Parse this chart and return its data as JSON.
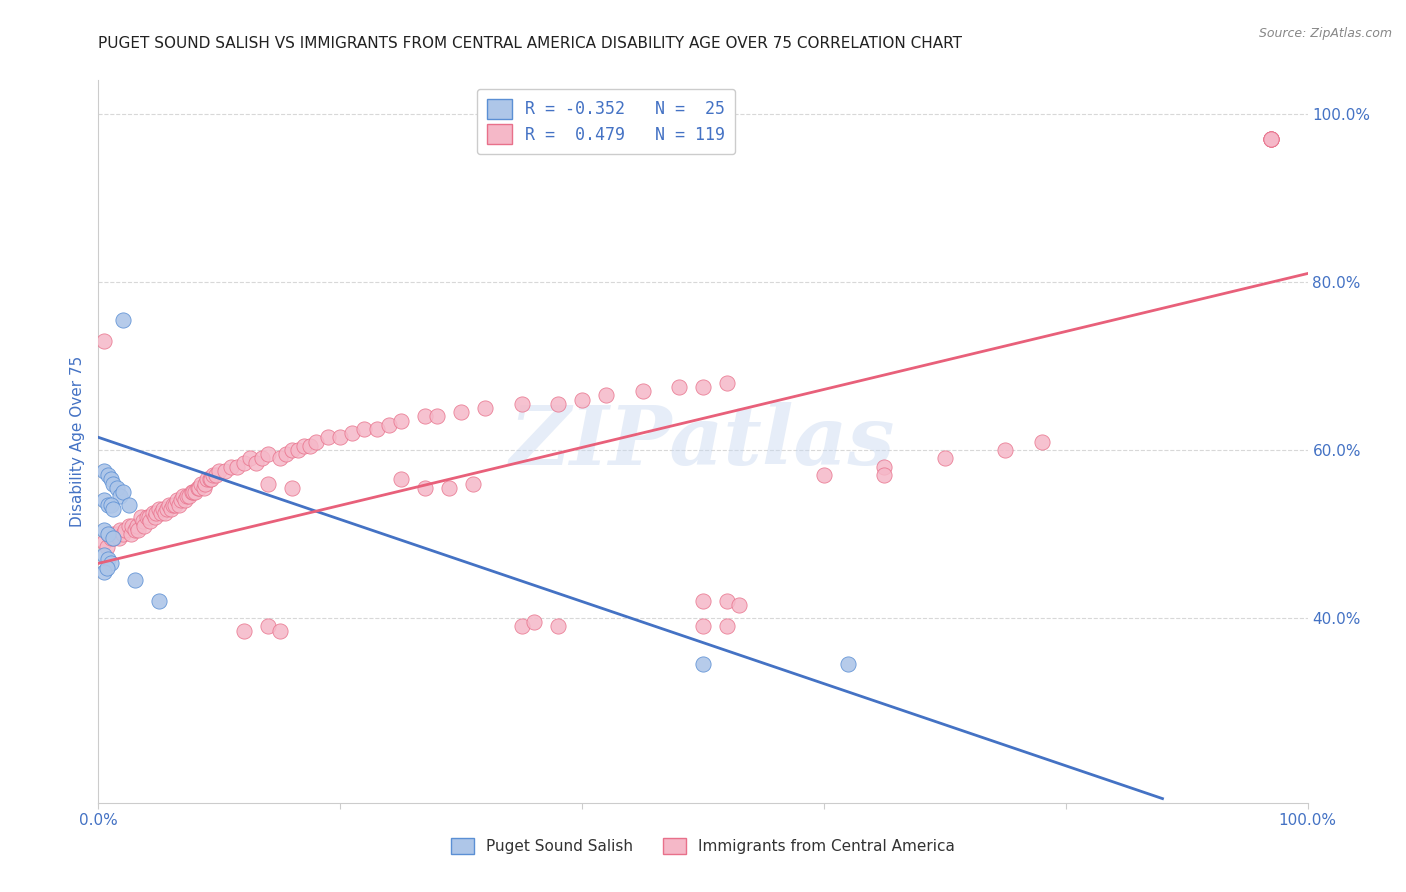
{
  "title": "PUGET SOUND SALISH VS IMMIGRANTS FROM CENTRAL AMERICA DISABILITY AGE OVER 75 CORRELATION CHART",
  "source": "Source: ZipAtlas.com",
  "ylabel": "Disability Age Over 75",
  "series1_label": "Puget Sound Salish",
  "series2_label": "Immigrants from Central America",
  "series1_R": "-0.352",
  "series1_N": "25",
  "series2_R": "0.479",
  "series2_N": "119",
  "series1_color": "#aec6e8",
  "series2_color": "#f5b8c8",
  "series1_edge_color": "#5b8fd4",
  "series2_edge_color": "#e8708a",
  "series1_line_color": "#4472c4",
  "series2_line_color": "#e8607a",
  "watermark": "ZIPatlas",
  "xmin": 0.0,
  "xmax": 1.0,
  "ymin": 0.18,
  "ymax": 1.04,
  "right_yticks": [
    0.4,
    0.6,
    0.8,
    1.0
  ],
  "right_yticklabels": [
    "40.0%",
    "60.0%",
    "80.0%",
    "100.0%"
  ],
  "legend1_text": "R = -0.352   N =  25",
  "legend2_text": "R =  0.479   N = 119",
  "series1_line_x0": 0.0,
  "series1_line_y0": 0.615,
  "series1_line_x1": 0.88,
  "series1_line_y1": 0.185,
  "series2_line_x0": 0.0,
  "series2_line_y0": 0.465,
  "series2_line_x1": 1.0,
  "series2_line_y1": 0.81,
  "background_color": "#ffffff",
  "grid_color": "#d8d8d8",
  "title_fontsize": 11,
  "source_fontsize": 9,
  "axis_color": "#4472c4",
  "series1_scatter_x": [
    0.005,
    0.008,
    0.01,
    0.012,
    0.015,
    0.018,
    0.02,
    0.025,
    0.005,
    0.008,
    0.01,
    0.012,
    0.005,
    0.008,
    0.012,
    0.005,
    0.008,
    0.01,
    0.005,
    0.007,
    0.03,
    0.05,
    0.5,
    0.62,
    0.02
  ],
  "series1_scatter_y": [
    0.575,
    0.57,
    0.565,
    0.56,
    0.555,
    0.545,
    0.55,
    0.535,
    0.54,
    0.535,
    0.535,
    0.53,
    0.505,
    0.5,
    0.495,
    0.475,
    0.47,
    0.465,
    0.455,
    0.46,
    0.445,
    0.42,
    0.345,
    0.345,
    0.755
  ],
  "series2_scatter_x": [
    0.005,
    0.007,
    0.008,
    0.01,
    0.012,
    0.013,
    0.015,
    0.017,
    0.018,
    0.02,
    0.022,
    0.025,
    0.027,
    0.028,
    0.03,
    0.032,
    0.033,
    0.035,
    0.037,
    0.038,
    0.04,
    0.042,
    0.043,
    0.045,
    0.047,
    0.048,
    0.05,
    0.052,
    0.053,
    0.055,
    0.057,
    0.058,
    0.06,
    0.062,
    0.063,
    0.065,
    0.067,
    0.068,
    0.07,
    0.072,
    0.073,
    0.075,
    0.077,
    0.078,
    0.08,
    0.082,
    0.083,
    0.085,
    0.087,
    0.088,
    0.09,
    0.092,
    0.093,
    0.095,
    0.097,
    0.1,
    0.105,
    0.11,
    0.115,
    0.12,
    0.125,
    0.13,
    0.135,
    0.14,
    0.15,
    0.155,
    0.16,
    0.165,
    0.17,
    0.175,
    0.18,
    0.19,
    0.2,
    0.21,
    0.22,
    0.23,
    0.24,
    0.25,
    0.27,
    0.28,
    0.3,
    0.32,
    0.35,
    0.38,
    0.4,
    0.42,
    0.45,
    0.48,
    0.5,
    0.52,
    0.5,
    0.52,
    0.53,
    0.6,
    0.65,
    0.7,
    0.75,
    0.78,
    0.97,
    0.97,
    0.97,
    0.97,
    0.97,
    0.65,
    0.25,
    0.27,
    0.29,
    0.31,
    0.16,
    0.14,
    0.35,
    0.36,
    0.38,
    0.5,
    0.52,
    0.12,
    0.14,
    0.15,
    0.005
  ],
  "series2_scatter_y": [
    0.49,
    0.485,
    0.5,
    0.495,
    0.5,
    0.495,
    0.5,
    0.495,
    0.505,
    0.5,
    0.505,
    0.51,
    0.5,
    0.51,
    0.505,
    0.51,
    0.505,
    0.52,
    0.515,
    0.51,
    0.52,
    0.52,
    0.515,
    0.525,
    0.52,
    0.525,
    0.53,
    0.525,
    0.53,
    0.525,
    0.53,
    0.535,
    0.53,
    0.535,
    0.535,
    0.54,
    0.535,
    0.54,
    0.545,
    0.54,
    0.545,
    0.545,
    0.55,
    0.55,
    0.55,
    0.555,
    0.555,
    0.56,
    0.555,
    0.56,
    0.565,
    0.565,
    0.565,
    0.57,
    0.57,
    0.575,
    0.575,
    0.58,
    0.58,
    0.585,
    0.59,
    0.585,
    0.59,
    0.595,
    0.59,
    0.595,
    0.6,
    0.6,
    0.605,
    0.605,
    0.61,
    0.615,
    0.615,
    0.62,
    0.625,
    0.625,
    0.63,
    0.635,
    0.64,
    0.64,
    0.645,
    0.65,
    0.655,
    0.655,
    0.66,
    0.665,
    0.67,
    0.675,
    0.675,
    0.68,
    0.42,
    0.42,
    0.415,
    0.57,
    0.58,
    0.59,
    0.6,
    0.61,
    0.97,
    0.97,
    0.97,
    0.97,
    0.97,
    0.57,
    0.565,
    0.555,
    0.555,
    0.56,
    0.555,
    0.56,
    0.39,
    0.395,
    0.39,
    0.39,
    0.39,
    0.385,
    0.39,
    0.385,
    0.73
  ]
}
